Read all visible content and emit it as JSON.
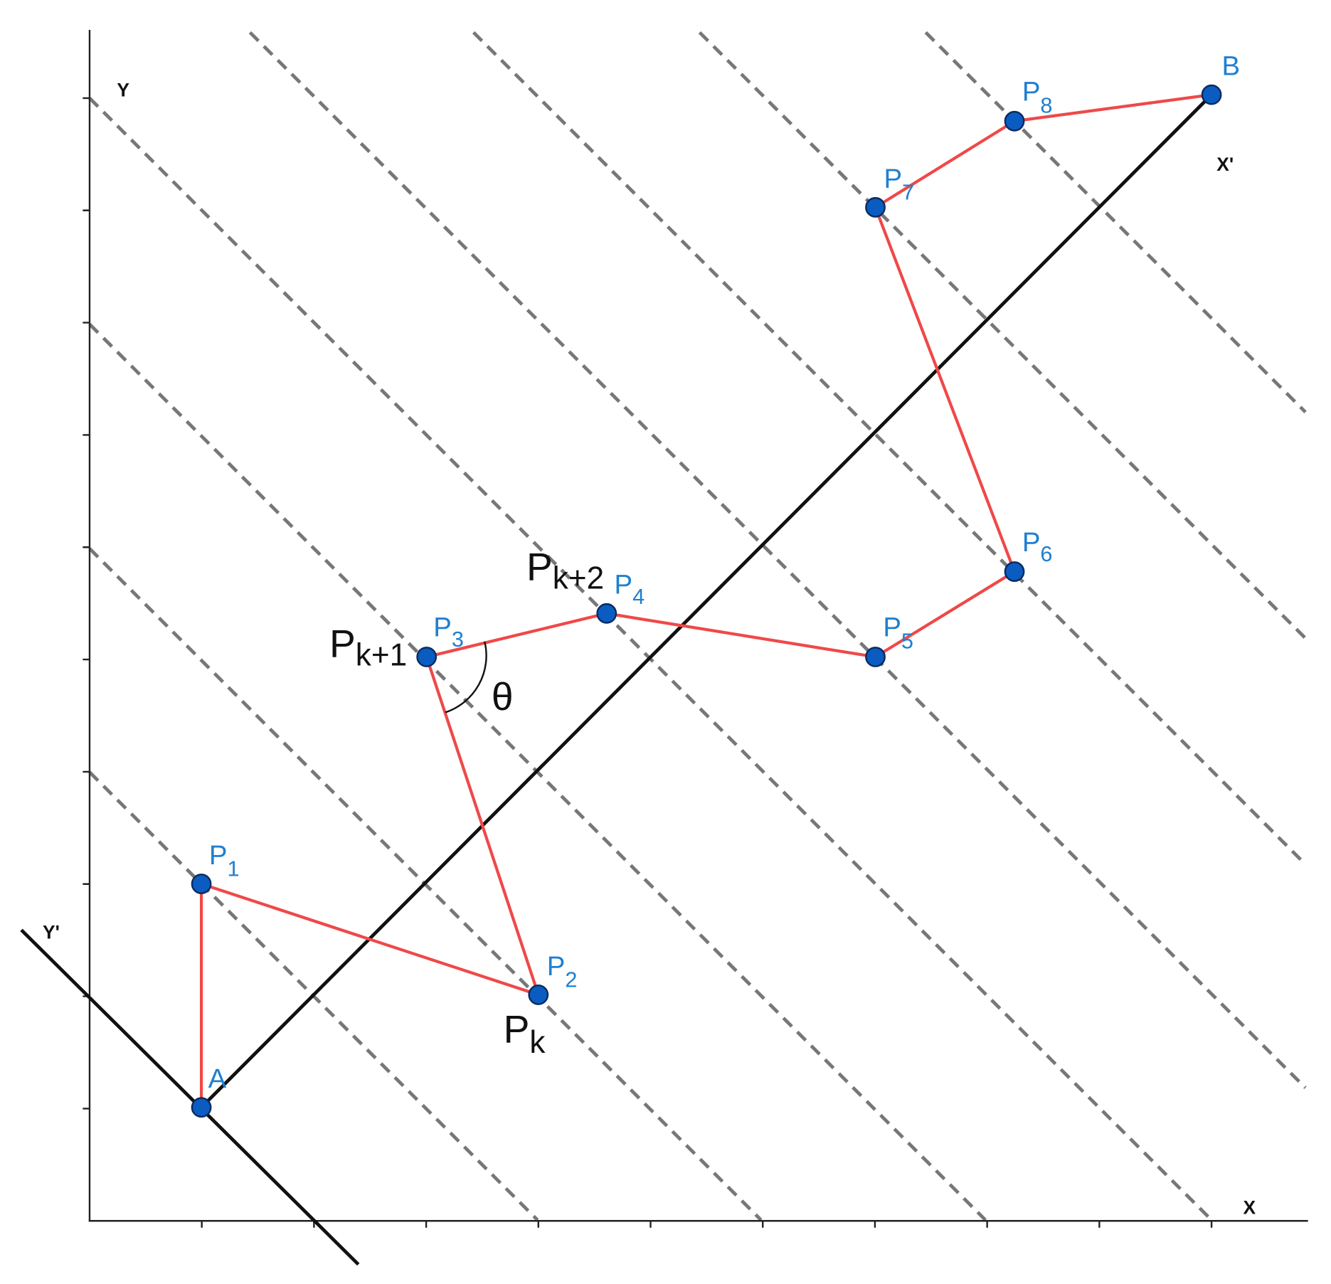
{
  "axes": {
    "y": "Y",
    "x": "X",
    "x_prime": "X'",
    "y_prime": "Y'"
  },
  "points": {
    "A": "A",
    "B": "B",
    "P1": {
      "base": "P",
      "sub": "1"
    },
    "P2": {
      "base": "P",
      "sub": "2"
    },
    "P3": {
      "base": "P",
      "sub": "3"
    },
    "P4": {
      "base": "P",
      "sub": "4"
    },
    "P5": {
      "base": "P",
      "sub": "5"
    },
    "P6": {
      "base": "P",
      "sub": "6"
    },
    "P7": {
      "base": "P",
      "sub": "7"
    },
    "P8": {
      "base": "P",
      "sub": "8"
    }
  },
  "annotations": {
    "pk": {
      "base": "P",
      "sub": "k"
    },
    "pk1": {
      "base": "P",
      "sub": "k+1"
    },
    "pk2": {
      "base": "P",
      "sub": "k+2"
    },
    "theta": "θ"
  }
}
